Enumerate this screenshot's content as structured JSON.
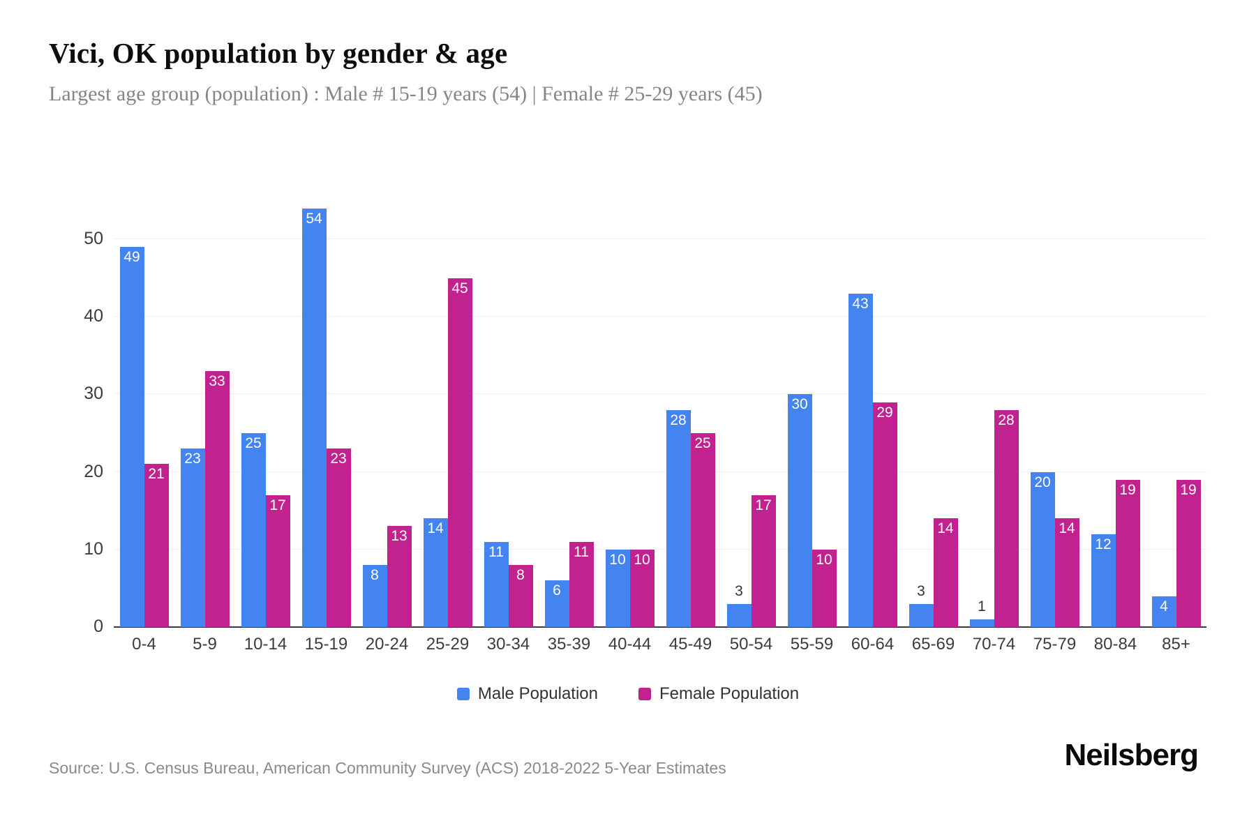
{
  "header": {
    "title": "Vici, OK population by gender & age",
    "subtitle": "Largest age group (population) : Male # 15-19 years (54) | Female # 25-29 years (45)"
  },
  "chart_data": {
    "type": "bar",
    "title": "Vici, OK population by gender & age",
    "subtitle": "Largest age group (population) : Male # 15-19 years (54) | Female # 25-29 years (45)",
    "categories": [
      "0-4",
      "5-9",
      "10-14",
      "15-19",
      "20-24",
      "25-29",
      "30-34",
      "35-39",
      "40-44",
      "45-49",
      "50-54",
      "55-59",
      "60-64",
      "65-69",
      "70-74",
      "75-79",
      "80-84",
      "85+"
    ],
    "series": [
      {
        "name": "Male Population",
        "color": "#4484f0",
        "values": [
          49,
          23,
          25,
          54,
          8,
          14,
          11,
          6,
          10,
          28,
          3,
          30,
          43,
          3,
          1,
          20,
          12,
          4
        ]
      },
      {
        "name": "Female Population",
        "color": "#c22190",
        "values": [
          21,
          33,
          17,
          23,
          13,
          45,
          8,
          11,
          10,
          25,
          17,
          10,
          29,
          14,
          28,
          14,
          19,
          19
        ]
      }
    ],
    "xlabel": "",
    "ylabel": "",
    "ylim": [
      0,
      55
    ],
    "yticks": [
      0,
      10,
      20,
      30,
      40,
      50
    ],
    "grid": true,
    "legend_position": "bottom",
    "bar_label_color_inside": "#ffffff",
    "bar_label_color_outside": "#333333",
    "gridline_color": "#f0f0f0",
    "axis_color": "#3a3a3a"
  },
  "footer": {
    "source": "Source: U.S. Census Bureau, American Community Survey (ACS) 2018-2022 5-Year Estimates",
    "brand": "Neilsberg"
  }
}
